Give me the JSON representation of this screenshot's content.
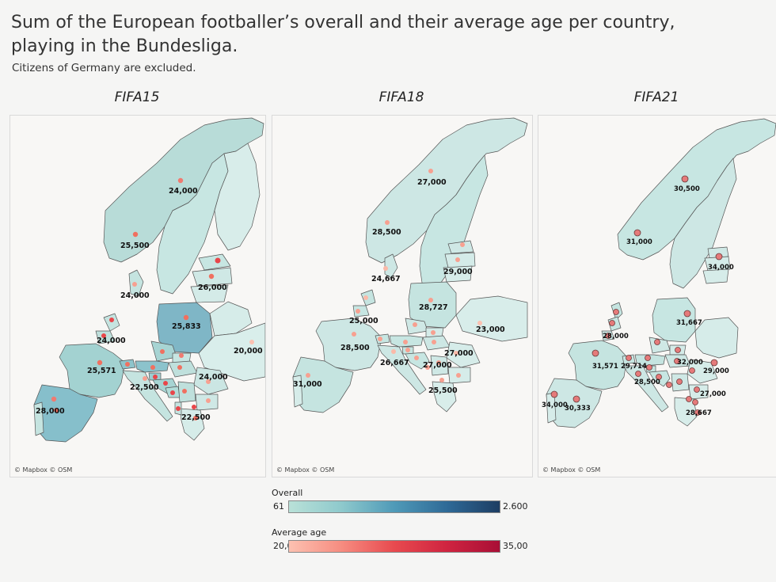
{
  "title": "Sum of the European footballer’s overall and their average age per country, playing in the Bundesliga.",
  "subtitle": "Citizens of Germany are excluded.",
  "maps": [
    {
      "name": "FIFA15",
      "attribution": "© Mapbox © OSM",
      "labels": [
        "24,000",
        "25,500",
        "26,000",
        "24,000",
        "25,833",
        "24,000",
        "20,000",
        "25,571",
        "24,000",
        "22,500",
        "28,000",
        "22,500"
      ]
    },
    {
      "name": "FIFA18",
      "attribution": "© Mapbox © OSM",
      "labels": [
        "27,000",
        "28,500",
        "29,000",
        "24,667",
        "28,727",
        "25,000",
        "23,000",
        "28,500",
        "26,667",
        "27,000",
        "27,000",
        "31,000",
        "25,500"
      ]
    },
    {
      "name": "FIFA21",
      "attribution": "© Mapbox © OSM",
      "labels": [
        "30,500",
        "31,000",
        "34,000",
        "31,667",
        "28,000",
        "31,571",
        "29,714",
        "32,000",
        "29,000",
        "28,500",
        "27,000",
        "34,000",
        "30,333",
        "28,667"
      ]
    }
  ],
  "legend": {
    "overall": {
      "title": "Overall",
      "min": "61",
      "max": "2.600",
      "colors": [
        "#b9e1d8",
        "#1d3d63"
      ]
    },
    "age": {
      "title": "Average age",
      "min": "20,00",
      "max": "35,00",
      "colors": [
        "#fcc1b1",
        "#a90e36"
      ]
    }
  },
  "colors": {
    "land_light": "#d6ece9",
    "land_mid": "#b2dcd8",
    "land_dark": "#8cc3cc",
    "border": "#555555"
  }
}
